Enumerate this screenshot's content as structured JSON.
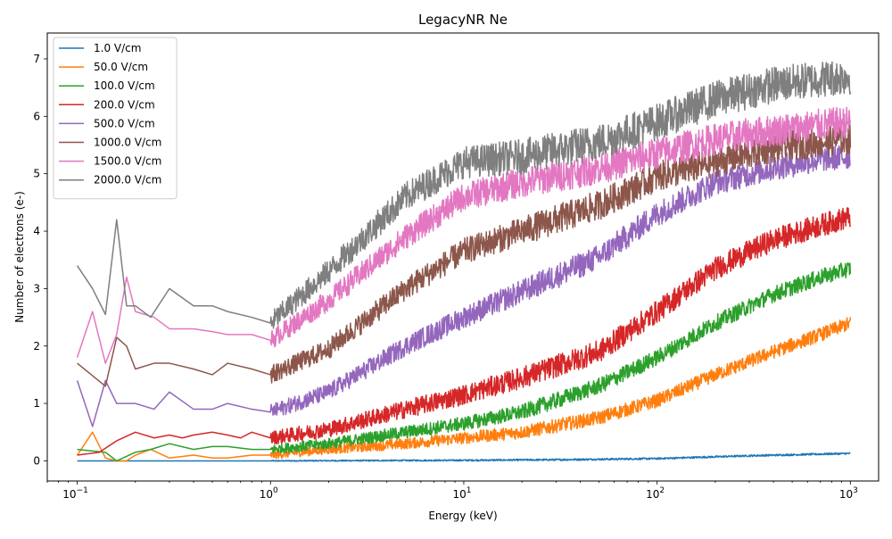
{
  "chart_data": {
    "type": "line",
    "title": "LegacyNR Ne",
    "xlabel": "Energy (keV)",
    "ylabel": "Number of electrons (e-)",
    "xscale": "log",
    "xlim": [
      0.07,
      1400
    ],
    "ylim": [
      -0.35,
      7.45
    ],
    "x_ticks": [
      {
        "value": 0.1,
        "base": "10",
        "exp": "−1"
      },
      {
        "value": 1,
        "base": "10",
        "exp": "0"
      },
      {
        "value": 10,
        "base": "10",
        "exp": "1"
      },
      {
        "value": 100,
        "base": "10",
        "exp": "2"
      },
      {
        "value": 1000,
        "base": "10",
        "exp": "3"
      }
    ],
    "y_ticks": [
      0,
      1,
      2,
      3,
      4,
      5,
      6,
      7
    ],
    "grid": false,
    "legend_position": "top-left",
    "series": [
      {
        "name": "1.0 V/cm",
        "color": "#1f77b4",
        "noise": 0.015,
        "x": [
          0.1,
          0.3,
          1,
          3,
          10,
          30,
          100,
          300,
          1000
        ],
        "y": [
          0.0,
          0.0,
          0.0,
          0.005,
          0.01,
          0.02,
          0.04,
          0.09,
          0.13
        ]
      },
      {
        "name": "50.0 V/cm",
        "color": "#ff7f0e",
        "noise": 0.12,
        "x": [
          0.1,
          0.12,
          0.14,
          0.16,
          0.18,
          0.2,
          0.24,
          0.3,
          0.4,
          0.5,
          0.6,
          0.8,
          1,
          2,
          5,
          10,
          20,
          50,
          100,
          200,
          400,
          700,
          1000
        ],
        "y": [
          0.1,
          0.5,
          0.05,
          0.0,
          0.0,
          0.1,
          0.2,
          0.05,
          0.1,
          0.05,
          0.05,
          0.1,
          0.1,
          0.2,
          0.3,
          0.4,
          0.5,
          0.75,
          1.05,
          1.5,
          1.9,
          2.2,
          2.4
        ]
      },
      {
        "name": "100.0 V/cm",
        "color": "#2ca02c",
        "noise": 0.14,
        "x": [
          0.1,
          0.14,
          0.16,
          0.2,
          0.24,
          0.3,
          0.4,
          0.5,
          0.6,
          0.8,
          1,
          2,
          5,
          10,
          20,
          50,
          100,
          200,
          400,
          700,
          1000
        ],
        "y": [
          0.2,
          0.15,
          0.0,
          0.15,
          0.2,
          0.3,
          0.2,
          0.25,
          0.25,
          0.2,
          0.2,
          0.3,
          0.5,
          0.65,
          0.85,
          1.3,
          1.8,
          2.4,
          2.9,
          3.2,
          3.35
        ]
      },
      {
        "name": "200.0 V/cm",
        "color": "#d62728",
        "noise": 0.2,
        "x": [
          0.1,
          0.13,
          0.16,
          0.2,
          0.25,
          0.3,
          0.35,
          0.4,
          0.5,
          0.6,
          0.7,
          0.8,
          1,
          2,
          5,
          10,
          20,
          50,
          100,
          200,
          400,
          700,
          1000
        ],
        "y": [
          0.1,
          0.15,
          0.35,
          0.5,
          0.4,
          0.45,
          0.4,
          0.45,
          0.5,
          0.45,
          0.4,
          0.5,
          0.4,
          0.55,
          0.9,
          1.15,
          1.45,
          1.9,
          2.6,
          3.35,
          3.85,
          4.1,
          4.25
        ]
      },
      {
        "name": "500.0 V/cm",
        "color": "#9467bd",
        "noise": 0.22,
        "x": [
          0.1,
          0.12,
          0.14,
          0.16,
          0.2,
          0.25,
          0.3,
          0.4,
          0.5,
          0.6,
          0.8,
          1,
          2,
          5,
          10,
          20,
          50,
          100,
          200,
          400,
          700,
          1000
        ],
        "y": [
          1.4,
          0.6,
          1.4,
          1.0,
          1.0,
          0.9,
          1.2,
          0.9,
          0.9,
          1.0,
          0.9,
          0.85,
          1.2,
          2.0,
          2.5,
          2.95,
          3.55,
          4.3,
          4.85,
          5.1,
          5.25,
          5.3
        ]
      },
      {
        "name": "1000.0 V/cm",
        "color": "#8c564b",
        "noise": 0.26,
        "x": [
          0.1,
          0.14,
          0.16,
          0.18,
          0.2,
          0.25,
          0.3,
          0.4,
          0.5,
          0.6,
          0.8,
          1,
          2,
          5,
          10,
          20,
          50,
          100,
          200,
          400,
          700,
          1000
        ],
        "y": [
          1.7,
          1.3,
          2.15,
          2.0,
          1.6,
          1.7,
          1.7,
          1.6,
          1.5,
          1.7,
          1.6,
          1.5,
          1.95,
          3.0,
          3.65,
          4.0,
          4.45,
          4.95,
          5.2,
          5.45,
          5.55,
          5.6
        ]
      },
      {
        "name": "1500.0 V/cm",
        "color": "#e377c2",
        "noise": 0.28,
        "x": [
          0.1,
          0.12,
          0.14,
          0.16,
          0.18,
          0.2,
          0.25,
          0.3,
          0.4,
          0.5,
          0.6,
          0.8,
          1,
          2,
          5,
          10,
          20,
          50,
          100,
          200,
          400,
          700,
          1000
        ],
        "y": [
          1.8,
          2.6,
          1.7,
          2.2,
          3.2,
          2.6,
          2.5,
          2.3,
          2.3,
          2.25,
          2.2,
          2.2,
          2.1,
          2.8,
          3.9,
          4.6,
          4.85,
          5.1,
          5.35,
          5.6,
          5.75,
          5.85,
          5.9
        ]
      },
      {
        "name": "2000.0 V/cm",
        "color": "#7f7f7f",
        "noise": 0.32,
        "x": [
          0.1,
          0.12,
          0.14,
          0.16,
          0.18,
          0.2,
          0.24,
          0.3,
          0.4,
          0.5,
          0.6,
          0.8,
          1,
          2,
          5,
          10,
          20,
          50,
          100,
          200,
          400,
          700,
          1000
        ],
        "y": [
          3.4,
          3.0,
          2.55,
          4.2,
          2.7,
          2.7,
          2.5,
          3.0,
          2.7,
          2.7,
          2.6,
          2.5,
          2.4,
          3.3,
          4.6,
          5.2,
          5.3,
          5.55,
          5.9,
          6.3,
          6.55,
          6.65,
          6.7
        ]
      }
    ]
  }
}
